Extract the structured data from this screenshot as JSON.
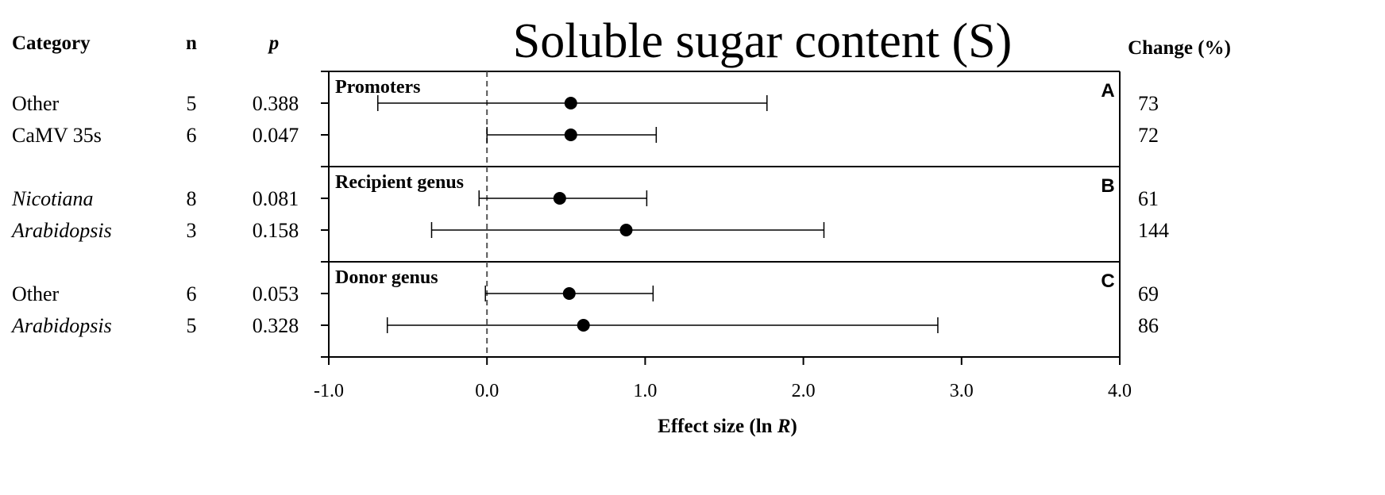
{
  "chart_data": {
    "type": "forest",
    "title": "Soluble sugar content (S)",
    "xlabel": "Effect size (ln R)",
    "xlim": [
      -1.0,
      4.0
    ],
    "xticks": [
      "-1.0",
      "0.0",
      "1.0",
      "2.0",
      "3.0",
      "4.0"
    ],
    "reference_line": 0.0,
    "column_headers": {
      "category": "Category",
      "n": "n",
      "p": "p",
      "change": "Change (%)"
    },
    "panels": [
      {
        "letter": "A",
        "label": "Promoters",
        "rows": [
          {
            "category": "Other",
            "italic": false,
            "n": "5",
            "p": "0.388",
            "change": "73",
            "effect": 0.53,
            "ci_low": -0.69,
            "ci_high": 1.77
          },
          {
            "category": "CaMV 35s",
            "italic": false,
            "n": "6",
            "p": "0.047",
            "change": "72",
            "effect": 0.53,
            "ci_low": 0.0,
            "ci_high": 1.07
          }
        ]
      },
      {
        "letter": "B",
        "label": "Recipient genus",
        "rows": [
          {
            "category": "Nicotiana",
            "italic": true,
            "n": "8",
            "p": "0.081",
            "change": "61",
            "effect": 0.46,
            "ci_low": -0.05,
            "ci_high": 1.01
          },
          {
            "category": "Arabidopsis",
            "italic": true,
            "n": "3",
            "p": "0.158",
            "change": "144",
            "effect": 0.88,
            "ci_low": -0.35,
            "ci_high": 2.13
          }
        ]
      },
      {
        "letter": "C",
        "label": "Donor genus",
        "rows": [
          {
            "category": "Other",
            "italic": false,
            "n": "6",
            "p": "0.053",
            "change": "69",
            "effect": 0.52,
            "ci_low": -0.01,
            "ci_high": 1.05
          },
          {
            "category": "Arabidopsis",
            "italic": true,
            "n": "5",
            "p": "0.328",
            "change": "86",
            "effect": 0.61,
            "ci_low": -0.63,
            "ci_high": 2.85
          }
        ]
      }
    ],
    "colors": {
      "axis": "#000000",
      "marker": "#000000",
      "reference_line": "#555555"
    }
  }
}
